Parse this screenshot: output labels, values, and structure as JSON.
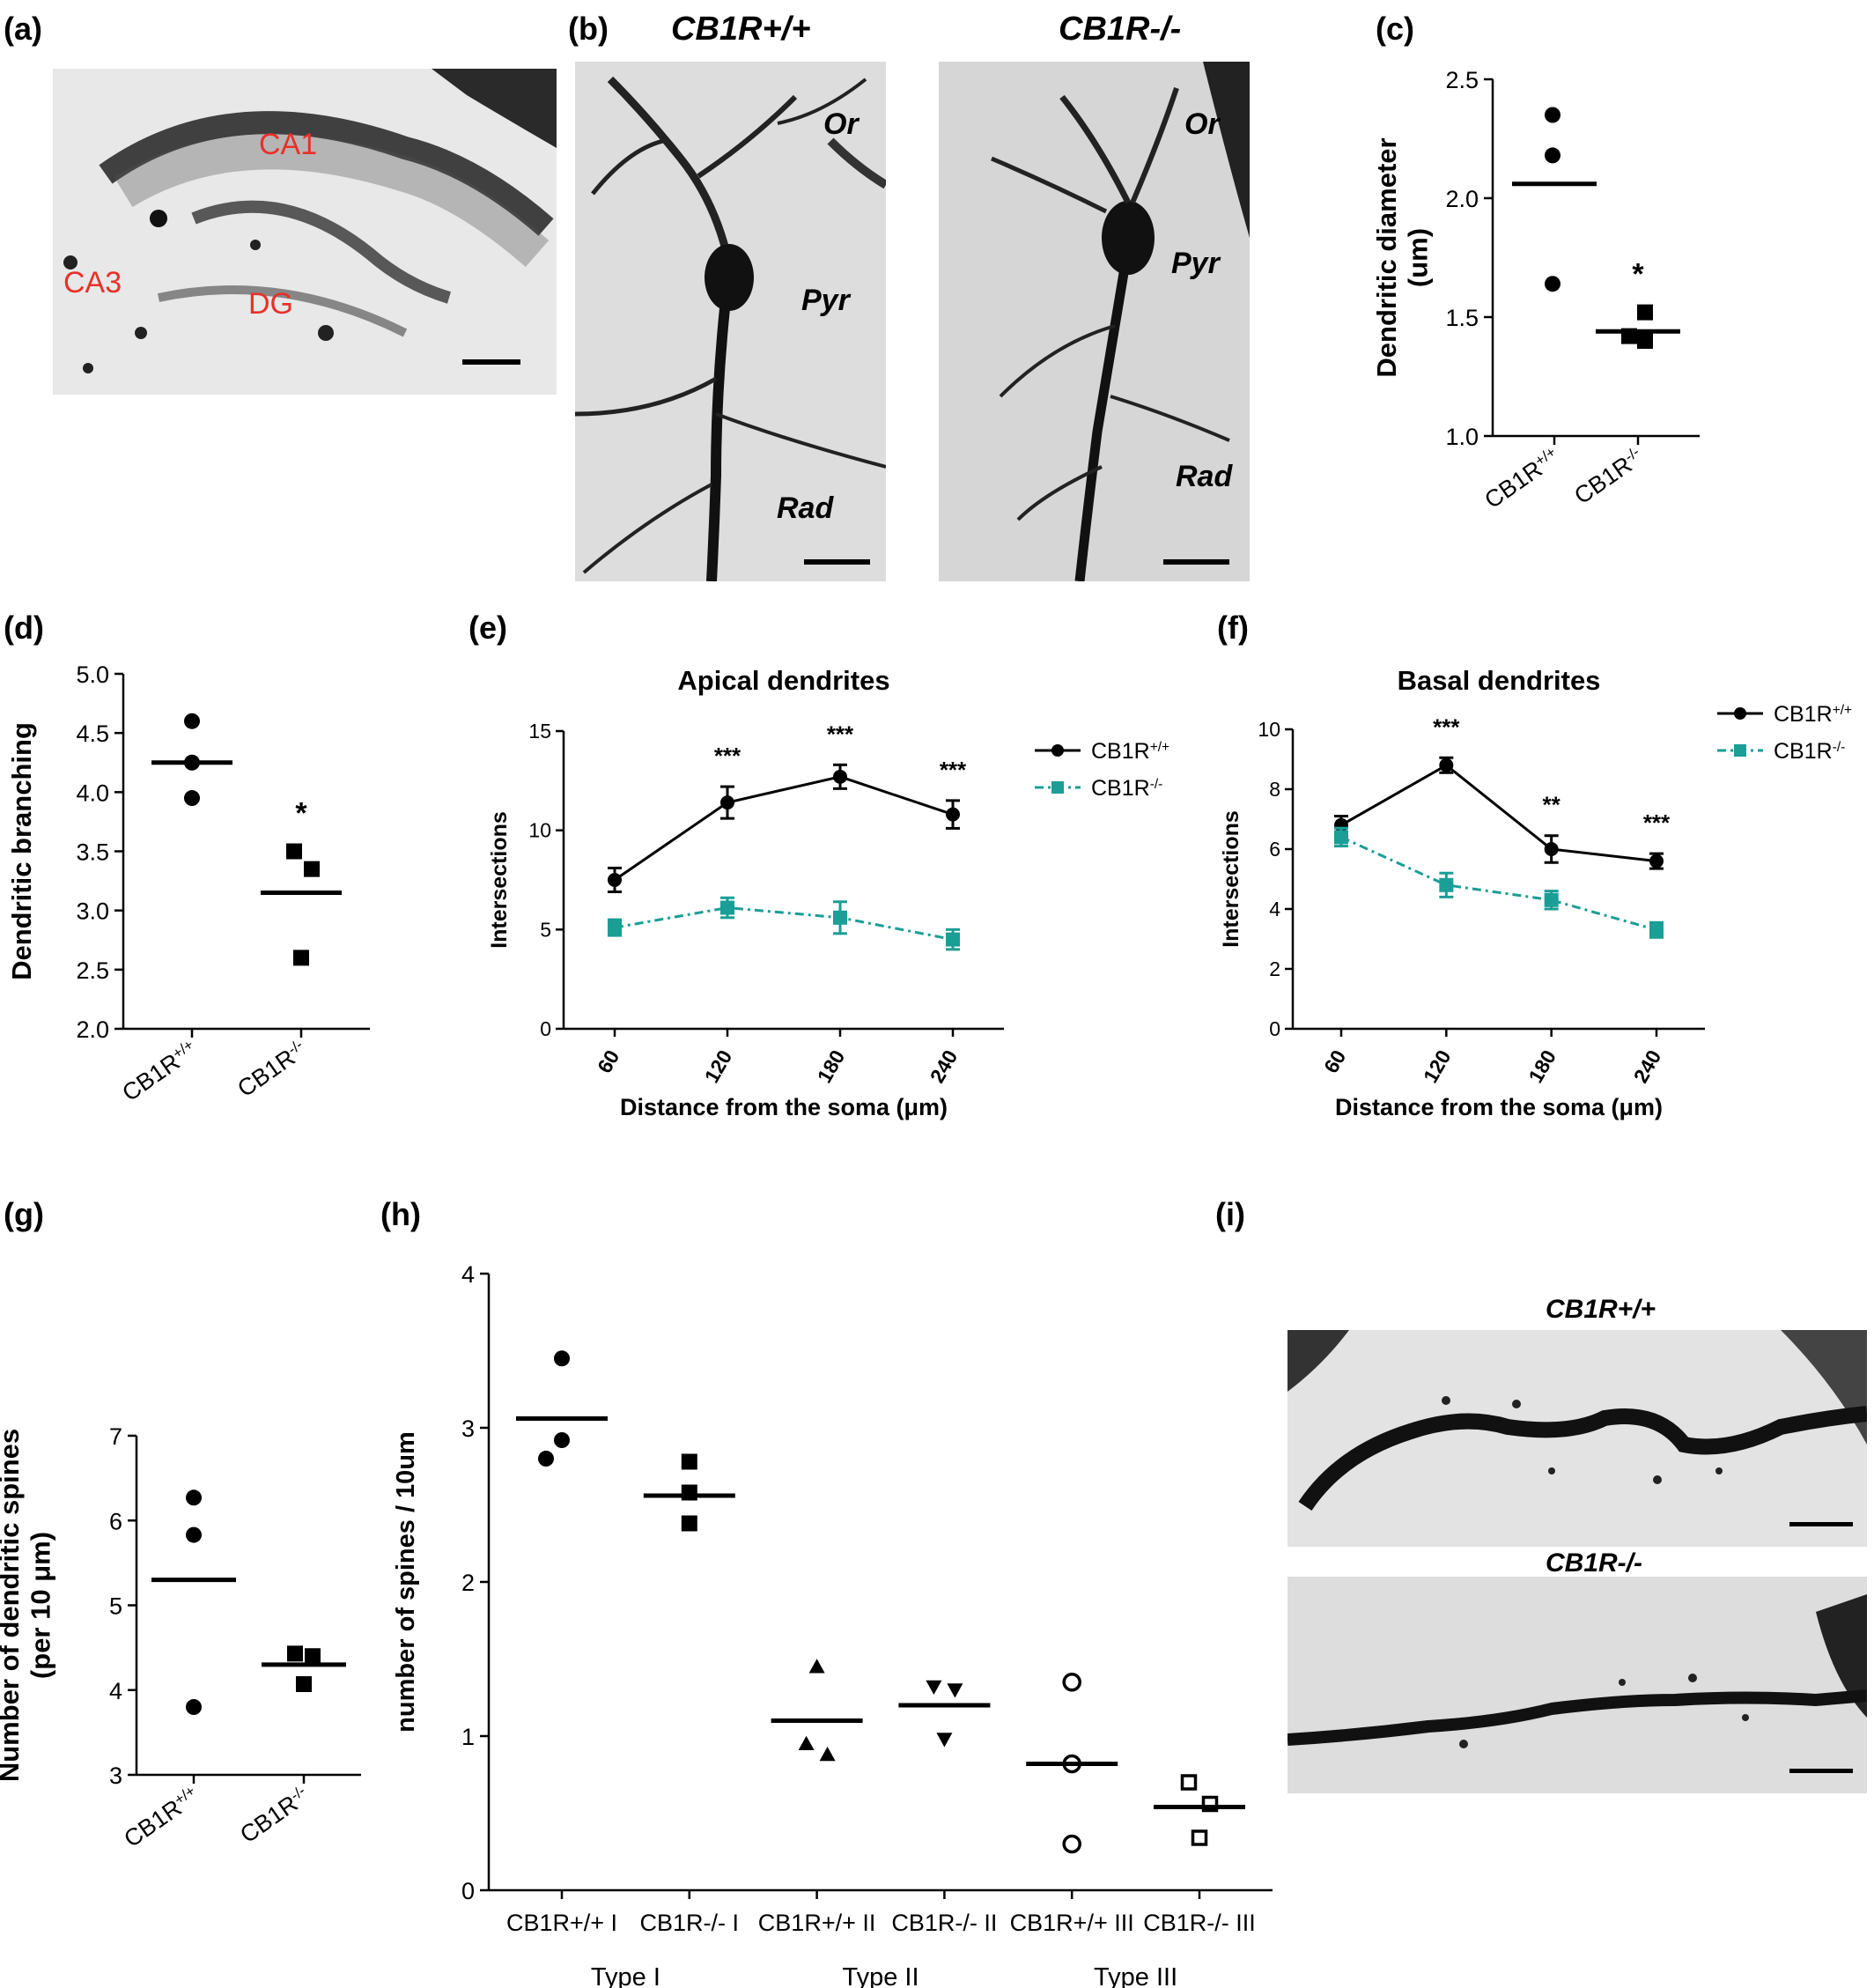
{
  "panel_labels": {
    "a": "(a)",
    "b": "(b)",
    "c": "(c)",
    "d": "(d)",
    "e": "(e)",
    "f": "(f)",
    "g": "(g)",
    "h": "(h)",
    "i": "(i)"
  },
  "panel_a": {
    "labels": [
      "CA1",
      "CA3",
      "DG"
    ],
    "label_color": "#e8302a"
  },
  "panel_b": {
    "left_header": "CB1R+/+",
    "right_header": "CB1R-/-",
    "layer_labels": [
      "Or",
      "Pyr",
      "Rad"
    ]
  },
  "panel_i": {
    "top_header": "CB1R+/+",
    "bottom_header": "CB1R-/-"
  },
  "colors": {
    "wild_type": "#000000",
    "knockout": "#1a9e96"
  },
  "chart_data": [
    {
      "panel": "c",
      "type": "scatter",
      "ylabel": "Dendritic diameter (um)",
      "categories": [
        "CB1R+/+",
        "CB1R-/-"
      ],
      "ylim": [
        1.0,
        2.5
      ],
      "yticks": [
        "1.0",
        "1.5",
        "2.0",
        "2.5"
      ],
      "series": [
        {
          "name": "CB1R+/+",
          "marker": "circle",
          "points": [
            2.35,
            2.18,
            1.64
          ],
          "mean": 2.06
        },
        {
          "name": "CB1R-/-",
          "marker": "square",
          "points": [
            1.52,
            1.42,
            1.4
          ],
          "mean": 1.44,
          "significance": "*"
        }
      ]
    },
    {
      "panel": "d",
      "type": "scatter",
      "ylabel": "Dendritic branching",
      "categories": [
        "CB1R+/+",
        "CB1R-/-"
      ],
      "ylim": [
        2.0,
        5.0
      ],
      "yticks": [
        "2.0",
        "2.5",
        "3.0",
        "3.5",
        "4.0",
        "4.5",
        "5.0"
      ],
      "series": [
        {
          "name": "CB1R+/+",
          "marker": "circle",
          "points": [
            4.6,
            4.25,
            3.95
          ],
          "mean": 4.25
        },
        {
          "name": "CB1R-/-",
          "marker": "square",
          "points": [
            3.5,
            3.35,
            2.6
          ],
          "mean": 3.15,
          "significance": "*"
        }
      ]
    },
    {
      "panel": "e",
      "type": "line",
      "title": "Apical dendrites",
      "xlabel": "Distance from the soma (μm)",
      "ylabel": "Intersections",
      "x": [
        60,
        120,
        180,
        240
      ],
      "ylim": [
        0,
        15
      ],
      "yticks": [
        "0",
        "5",
        "10",
        "15"
      ],
      "significance": [
        "",
        "***",
        "***",
        "***"
      ],
      "series": [
        {
          "name": "CB1R+/+",
          "values": [
            7.5,
            11.4,
            12.7,
            10.8
          ],
          "errors": [
            0.6,
            0.8,
            0.6,
            0.7
          ]
        },
        {
          "name": "CB1R-/-",
          "values": [
            5.1,
            6.1,
            5.6,
            4.5
          ],
          "errors": [
            0.4,
            0.5,
            0.8,
            0.5
          ]
        }
      ]
    },
    {
      "panel": "f",
      "type": "line",
      "title": "Basal dendrites",
      "xlabel": "Distance from the soma (μm)",
      "ylabel": "Intersections",
      "x": [
        60,
        120,
        180,
        240
      ],
      "ylim": [
        0,
        10
      ],
      "yticks": [
        "0",
        "2",
        "4",
        "6",
        "8",
        "10"
      ],
      "significance": [
        "",
        "***",
        "**",
        "***"
      ],
      "series": [
        {
          "name": "CB1R+/+",
          "values": [
            6.8,
            8.8,
            6.0,
            5.6
          ],
          "errors": [
            0.3,
            0.25,
            0.45,
            0.25
          ]
        },
        {
          "name": "CB1R-/-",
          "values": [
            6.4,
            4.8,
            4.3,
            3.3
          ],
          "errors": [
            0.3,
            0.4,
            0.3,
            0.25
          ]
        }
      ]
    },
    {
      "panel": "g",
      "type": "scatter",
      "ylabel": "Number of dendritic spines (per 10 μm)",
      "categories": [
        "CB1R+/+",
        "CB1R-/-"
      ],
      "ylim": [
        3,
        7
      ],
      "yticks": [
        "3",
        "4",
        "5",
        "6",
        "7"
      ],
      "series": [
        {
          "name": "CB1R+/+",
          "marker": "circle",
          "points": [
            6.27,
            5.83,
            3.8
          ],
          "mean": 5.3
        },
        {
          "name": "CB1R-/-",
          "marker": "square",
          "points": [
            4.43,
            4.4,
            4.07
          ],
          "mean": 4.3
        }
      ]
    },
    {
      "panel": "h",
      "type": "scatter",
      "ylabel": "number of spines / 10um",
      "categories": [
        "CB1R+/+ I",
        "CB1R-/- I",
        "CB1R+/+ II",
        "CB1R-/- II",
        "CB1R+/+ III",
        "CB1R-/- III"
      ],
      "groups": [
        "Type I",
        "Type II",
        "Type III"
      ],
      "ylim": [
        0,
        4
      ],
      "yticks": [
        "0",
        "1",
        "2",
        "3",
        "4"
      ],
      "series": [
        {
          "name": "CB1R+/+ I",
          "marker": "circle",
          "points": [
            3.45,
            2.92,
            2.8
          ],
          "mean": 3.06
        },
        {
          "name": "CB1R-/- I",
          "marker": "square",
          "points": [
            2.78,
            2.58,
            2.38
          ],
          "mean": 2.56
        },
        {
          "name": "CB1R+/+ II",
          "marker": "triangle-up",
          "points": [
            1.45,
            0.95,
            0.88
          ],
          "mean": 1.1
        },
        {
          "name": "CB1R-/- II",
          "marker": "triangle-down",
          "points": [
            1.32,
            1.3,
            0.98
          ],
          "mean": 1.2
        },
        {
          "name": "CB1R+/+ III",
          "marker": "open-circle",
          "points": [
            1.35,
            0.82,
            0.3
          ],
          "mean": 0.82
        },
        {
          "name": "CB1R-/- III",
          "marker": "open-square",
          "points": [
            0.7,
            0.56,
            0.34
          ],
          "mean": 0.54
        }
      ]
    }
  ]
}
